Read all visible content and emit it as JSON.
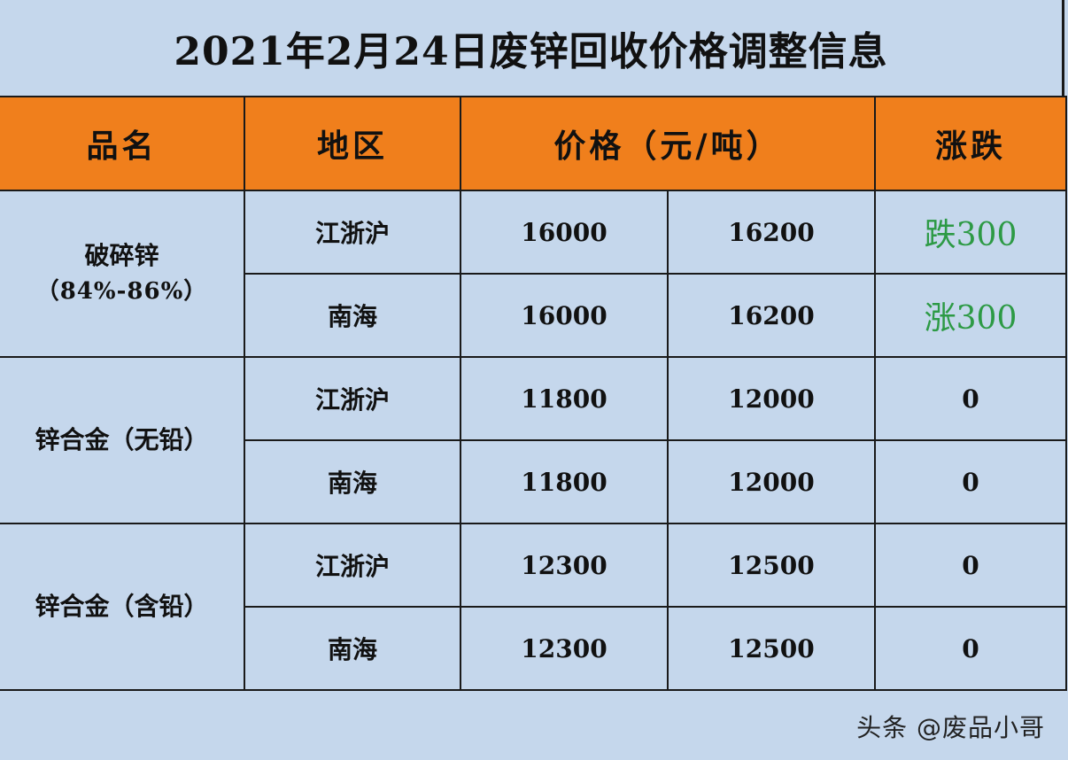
{
  "title": "2021年2月24日废锌回收价格调整信息",
  "headers": {
    "product": "品名",
    "region": "地区",
    "price": "价格（元/吨）",
    "change": "涨跌"
  },
  "groups": [
    {
      "product": "破碎锌",
      "product_sub": "（84%-86%）",
      "rows": [
        {
          "region": "江浙沪",
          "price_low": "16000",
          "price_high": "16200",
          "change": "跌300"
        },
        {
          "region": "南海",
          "price_low": "16000",
          "price_high": "16200",
          "change": "涨300"
        }
      ]
    },
    {
      "product": "锌合金（无铅）",
      "product_sub": "",
      "rows": [
        {
          "region": "江浙沪",
          "price_low": "11800",
          "price_high": "12000",
          "change": "0"
        },
        {
          "region": "南海",
          "price_low": "11800",
          "price_high": "12000",
          "change": "0"
        }
      ]
    },
    {
      "product": "锌合金（含铅）",
      "product_sub": "",
      "rows": [
        {
          "region": "江浙沪",
          "price_low": "12300",
          "price_high": "12500",
          "change": "0"
        },
        {
          "region": "南海",
          "price_low": "12300",
          "price_high": "12500",
          "change": "0"
        }
      ]
    }
  ],
  "watermark": "头条 @废品小哥",
  "colors": {
    "background": "#c5d7ec",
    "header": "#f07f1c",
    "change_highlight": "#2d9a45"
  }
}
